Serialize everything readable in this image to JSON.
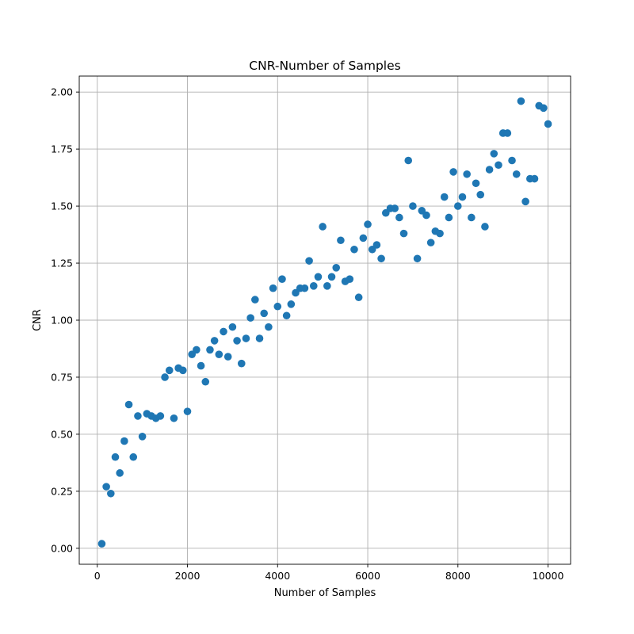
{
  "chart_data": {
    "type": "scatter",
    "title": "CNR-Number of Samples",
    "xlabel": "Number of Samples",
    "ylabel": "CNR",
    "xlim": [
      -400,
      10500
    ],
    "ylim": [
      -0.07,
      2.07
    ],
    "xticks": [
      0,
      2000,
      4000,
      6000,
      8000,
      10000
    ],
    "xtick_labels": [
      "0",
      "2000",
      "4000",
      "6000",
      "8000",
      "10000"
    ],
    "yticks": [
      0.0,
      0.25,
      0.5,
      0.75,
      1.0,
      1.25,
      1.5,
      1.75,
      2.0
    ],
    "ytick_labels": [
      "0.00",
      "0.25",
      "0.50",
      "0.75",
      "1.00",
      "1.25",
      "1.50",
      "1.75",
      "2.00"
    ],
    "grid": true,
    "marker_color": "#1f77b4",
    "x": [
      100,
      200,
      300,
      400,
      500,
      600,
      700,
      800,
      900,
      1000,
      1100,
      1200,
      1300,
      1400,
      1500,
      1600,
      1700,
      1800,
      1900,
      2000,
      2100,
      2200,
      2300,
      2400,
      2500,
      2600,
      2700,
      2800,
      2900,
      3000,
      3100,
      3200,
      3300,
      3400,
      3500,
      3600,
      3700,
      3800,
      3900,
      4000,
      4100,
      4200,
      4300,
      4400,
      4500,
      4600,
      4700,
      4800,
      4900,
      5000,
      5100,
      5200,
      5300,
      5400,
      5500,
      5600,
      5700,
      5800,
      5900,
      6000,
      6100,
      6200,
      6300,
      6400,
      6500,
      6600,
      6700,
      6800,
      6900,
      7000,
      7100,
      7200,
      7300,
      7400,
      7500,
      7600,
      7700,
      7800,
      7900,
      8000,
      8100,
      8200,
      8300,
      8400,
      8500,
      8600,
      8700,
      8800,
      8900,
      9000,
      9100,
      9200,
      9300,
      9400,
      9500,
      9600,
      9700,
      9800,
      9900,
      10000
    ],
    "y": [
      0.02,
      0.27,
      0.24,
      0.4,
      0.33,
      0.47,
      0.63,
      0.4,
      0.58,
      0.49,
      0.59,
      0.58,
      0.57,
      0.58,
      0.75,
      0.78,
      0.57,
      0.79,
      0.78,
      0.6,
      0.85,
      0.87,
      0.8,
      0.73,
      0.87,
      0.91,
      0.85,
      0.95,
      0.84,
      0.97,
      0.91,
      0.81,
      0.92,
      1.01,
      1.09,
      0.92,
      1.03,
      0.97,
      1.14,
      1.06,
      1.18,
      1.02,
      1.07,
      1.12,
      1.14,
      1.14,
      1.26,
      1.15,
      1.19,
      1.41,
      1.15,
      1.19,
      1.23,
      1.35,
      1.17,
      1.18,
      1.31,
      1.1,
      1.36,
      1.42,
      1.31,
      1.33,
      1.27,
      1.47,
      1.49,
      1.49,
      1.45,
      1.38,
      1.7,
      1.5,
      1.27,
      1.48,
      1.46,
      1.34,
      1.39,
      1.38,
      1.54,
      1.45,
      1.65,
      1.5,
      1.54,
      1.64,
      1.45,
      1.6,
      1.55,
      1.41,
      1.66,
      1.73,
      1.68,
      1.82,
      1.82,
      1.7,
      1.64,
      1.96,
      1.52,
      1.62,
      1.62,
      1.94,
      1.93,
      1.86
    ]
  }
}
